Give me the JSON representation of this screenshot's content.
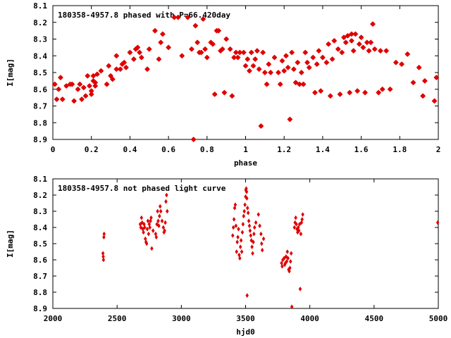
{
  "chart_data": [
    {
      "type": "scatter",
      "title": "180358-4957.8 phased with P=66.420day",
      "xlabel": "phase",
      "ylabel": "I[mag]",
      "xlim": [
        0,
        2
      ],
      "ylim": [
        8.9,
        8.1
      ],
      "y_inverted": true,
      "xticks": [
        "0",
        "0.2",
        "0.4",
        "0.6",
        "0.8",
        "1",
        "1.2",
        "1.4",
        "1.6",
        "1.8",
        "2"
      ],
      "yticks": [
        "8.1",
        "8.2",
        "8.3",
        "8.4",
        "8.5",
        "8.6",
        "8.7",
        "8.8",
        "8.9"
      ],
      "grid": false,
      "marker_color": "#e00000",
      "points": [
        [
          0.01,
          8.57
        ],
        [
          0.02,
          8.66
        ],
        [
          0.03,
          8.6
        ],
        [
          0.04,
          8.53
        ],
        [
          0.05,
          8.66
        ],
        [
          0.07,
          8.58
        ],
        [
          0.09,
          8.57
        ],
        [
          0.1,
          8.57
        ],
        [
          0.11,
          8.67
        ],
        [
          0.13,
          8.6
        ],
        [
          0.14,
          8.57
        ],
        [
          0.15,
          8.66
        ],
        [
          0.16,
          8.59
        ],
        [
          0.17,
          8.64
        ],
        [
          0.18,
          8.52
        ],
        [
          0.19,
          8.58
        ],
        [
          0.2,
          8.63
        ],
        [
          0.2,
          8.61
        ],
        [
          0.21,
          8.52
        ],
        [
          0.21,
          8.55
        ],
        [
          0.22,
          8.56
        ],
        [
          0.22,
          8.58
        ],
        [
          0.23,
          8.51
        ],
        [
          0.25,
          8.49
        ],
        [
          0.28,
          8.57
        ],
        [
          0.29,
          8.46
        ],
        [
          0.3,
          8.52
        ],
        [
          0.31,
          8.54
        ],
        [
          0.33,
          8.4
        ],
        [
          0.33,
          8.48
        ],
        [
          0.35,
          8.48
        ],
        [
          0.36,
          8.45
        ],
        [
          0.37,
          8.44
        ],
        [
          0.38,
          8.47
        ],
        [
          0.4,
          8.38
        ],
        [
          0.42,
          8.42
        ],
        [
          0.43,
          8.36
        ],
        [
          0.44,
          8.35
        ],
        [
          0.45,
          8.38
        ],
        [
          0.46,
          8.41
        ],
        [
          0.49,
          8.48
        ],
        [
          0.5,
          8.36
        ],
        [
          0.53,
          8.25
        ],
        [
          0.55,
          8.42
        ],
        [
          0.56,
          8.32
        ],
        [
          0.57,
          8.27
        ],
        [
          0.6,
          8.35
        ],
        [
          0.63,
          8.17
        ],
        [
          0.65,
          8.17
        ],
        [
          0.67,
          8.4
        ],
        [
          0.7,
          8.17
        ],
        [
          0.72,
          8.36
        ],
        [
          0.73,
          8.9
        ],
        [
          0.74,
          8.22
        ],
        [
          0.75,
          8.32
        ],
        [
          0.76,
          8.38
        ],
        [
          0.77,
          8.38
        ],
        [
          0.78,
          8.18
        ],
        [
          0.79,
          8.36
        ],
        [
          0.8,
          8.41
        ],
        [
          0.82,
          8.32
        ],
        [
          0.83,
          8.33
        ],
        [
          0.84,
          8.63
        ],
        [
          0.85,
          8.25
        ],
        [
          0.86,
          8.25
        ],
        [
          0.87,
          8.37
        ],
        [
          0.88,
          8.36
        ],
        [
          0.89,
          8.62
        ],
        [
          0.9,
          8.3
        ],
        [
          0.92,
          8.36
        ],
        [
          0.93,
          8.64
        ],
        [
          0.94,
          8.41
        ],
        [
          0.95,
          8.38
        ],
        [
          0.96,
          8.41
        ],
        [
          0.97,
          8.38
        ],
        [
          0.99,
          8.38
        ],
        [
          1.0,
          8.46
        ],
        [
          1.01,
          8.42
        ],
        [
          1.02,
          8.49
        ],
        [
          1.03,
          8.38
        ],
        [
          1.04,
          8.46
        ],
        [
          1.05,
          8.42
        ],
        [
          1.06,
          8.37
        ],
        [
          1.07,
          8.48
        ],
        [
          1.08,
          8.82
        ],
        [
          1.09,
          8.38
        ],
        [
          1.1,
          8.5
        ],
        [
          1.11,
          8.57
        ],
        [
          1.12,
          8.45
        ],
        [
          1.13,
          8.5
        ],
        [
          1.15,
          8.41
        ],
        [
          1.17,
          8.5
        ],
        [
          1.18,
          8.57
        ],
        [
          1.19,
          8.43
        ],
        [
          1.2,
          8.49
        ],
        [
          1.21,
          8.4
        ],
        [
          1.22,
          8.47
        ],
        [
          1.23,
          8.78
        ],
        [
          1.24,
          8.38
        ],
        [
          1.25,
          8.48
        ],
        [
          1.26,
          8.56
        ],
        [
          1.27,
          8.44
        ],
        [
          1.28,
          8.57
        ],
        [
          1.29,
          8.5
        ],
        [
          1.3,
          8.57
        ],
        [
          1.31,
          8.38
        ],
        [
          1.32,
          8.44
        ],
        [
          1.33,
          8.47
        ],
        [
          1.35,
          8.41
        ],
        [
          1.36,
          8.62
        ],
        [
          1.37,
          8.45
        ],
        [
          1.38,
          8.37
        ],
        [
          1.39,
          8.61
        ],
        [
          1.4,
          8.41
        ],
        [
          1.42,
          8.44
        ],
        [
          1.43,
          8.33
        ],
        [
          1.44,
          8.64
        ],
        [
          1.45,
          8.42
        ],
        [
          1.46,
          8.31
        ],
        [
          1.48,
          8.36
        ],
        [
          1.49,
          8.63
        ],
        [
          1.5,
          8.38
        ],
        [
          1.51,
          8.29
        ],
        [
          1.52,
          8.32
        ],
        [
          1.53,
          8.28
        ],
        [
          1.54,
          8.62
        ],
        [
          1.55,
          8.31
        ],
        [
          1.55,
          8.27
        ],
        [
          1.56,
          8.37
        ],
        [
          1.57,
          8.27
        ],
        [
          1.58,
          8.61
        ],
        [
          1.59,
          8.33
        ],
        [
          1.6,
          8.29
        ],
        [
          1.61,
          8.35
        ],
        [
          1.62,
          8.62
        ],
        [
          1.63,
          8.32
        ],
        [
          1.64,
          8.37
        ],
        [
          1.65,
          8.32
        ],
        [
          1.66,
          8.21
        ],
        [
          1.67,
          8.36
        ],
        [
          1.69,
          8.62
        ],
        [
          1.7,
          8.37
        ],
        [
          1.71,
          8.6
        ],
        [
          1.73,
          8.37
        ],
        [
          1.75,
          8.6
        ],
        [
          1.78,
          8.44
        ],
        [
          1.81,
          8.45
        ],
        [
          1.84,
          8.39
        ],
        [
          1.87,
          8.56
        ],
        [
          1.9,
          8.47
        ],
        [
          1.92,
          8.64
        ],
        [
          1.93,
          8.55
        ],
        [
          1.98,
          8.67
        ],
        [
          1.99,
          8.53
        ]
      ]
    },
    {
      "type": "scatter",
      "title": "180358-4957.8 not phased light curve",
      "xlabel": "hjd0",
      "ylabel": "I[mag]",
      "xlim": [
        2000,
        5000
      ],
      "ylim": [
        8.9,
        8.1
      ],
      "y_inverted": true,
      "xticks": [
        "2000",
        "2500",
        "3000",
        "3500",
        "4000",
        "4500",
        "5000"
      ],
      "yticks": [
        "8.1",
        "8.2",
        "8.3",
        "8.4",
        "8.5",
        "8.6",
        "8.7",
        "8.8",
        "8.9"
      ],
      "grid": false,
      "marker_color": "#e00000",
      "points": [
        [
          2390,
          8.56
        ],
        [
          2392,
          8.58
        ],
        [
          2394,
          8.6
        ],
        [
          2397,
          8.46
        ],
        [
          2399,
          8.44
        ],
        [
          2680,
          8.38
        ],
        [
          2685,
          8.4
        ],
        [
          2690,
          8.34
        ],
        [
          2695,
          8.37
        ],
        [
          2700,
          8.41
        ],
        [
          2705,
          8.43
        ],
        [
          2710,
          8.38
        ],
        [
          2715,
          8.4
        ],
        [
          2720,
          8.47
        ],
        [
          2725,
          8.49
        ],
        [
          2730,
          8.5
        ],
        [
          2735,
          8.41
        ],
        [
          2740,
          8.36
        ],
        [
          2745,
          8.44
        ],
        [
          2750,
          8.38
        ],
        [
          2755,
          8.4
        ],
        [
          2760,
          8.36
        ],
        [
          2765,
          8.34
        ],
        [
          2770,
          8.53
        ],
        [
          2780,
          8.42
        ],
        [
          2800,
          8.44
        ],
        [
          2805,
          8.46
        ],
        [
          2810,
          8.38
        ],
        [
          2815,
          8.3
        ],
        [
          2820,
          8.36
        ],
        [
          2825,
          8.39
        ],
        [
          2830,
          8.33
        ],
        [
          2835,
          8.27
        ],
        [
          2840,
          8.3
        ],
        [
          2850,
          8.36
        ],
        [
          2860,
          8.4
        ],
        [
          2865,
          8.43
        ],
        [
          2870,
          8.42
        ],
        [
          2875,
          8.37
        ],
        [
          2880,
          8.24
        ],
        [
          2885,
          8.2
        ],
        [
          2890,
          8.3
        ],
        [
          3400,
          8.45
        ],
        [
          3405,
          8.4
        ],
        [
          3410,
          8.35
        ],
        [
          3415,
          8.28
        ],
        [
          3420,
          8.26
        ],
        [
          3425,
          8.39
        ],
        [
          3430,
          8.55
        ],
        [
          3435,
          8.49
        ],
        [
          3440,
          8.46
        ],
        [
          3445,
          8.41
        ],
        [
          3450,
          8.57
        ],
        [
          3455,
          8.59
        ],
        [
          3460,
          8.52
        ],
        [
          3465,
          8.48
        ],
        [
          3470,
          8.55
        ],
        [
          3475,
          8.43
        ],
        [
          3480,
          8.38
        ],
        [
          3485,
          8.33
        ],
        [
          3490,
          8.3
        ],
        [
          3495,
          8.26
        ],
        [
          3500,
          8.21
        ],
        [
          3502,
          8.17
        ],
        [
          3505,
          8.16
        ],
        [
          3508,
          8.18
        ],
        [
          3510,
          8.22
        ],
        [
          3512,
          8.82
        ],
        [
          3515,
          8.28
        ],
        [
          3520,
          8.31
        ],
        [
          3525,
          8.36
        ],
        [
          3530,
          8.39
        ],
        [
          3535,
          8.42
        ],
        [
          3540,
          8.45
        ],
        [
          3545,
          8.48
        ],
        [
          3550,
          8.52
        ],
        [
          3555,
          8.56
        ],
        [
          3560,
          8.49
        ],
        [
          3565,
          8.44
        ],
        [
          3570,
          8.4
        ],
        [
          3580,
          8.37
        ],
        [
          3600,
          8.32
        ],
        [
          3610,
          8.39
        ],
        [
          3620,
          8.44
        ],
        [
          3625,
          8.5
        ],
        [
          3630,
          8.54
        ],
        [
          3640,
          8.47
        ],
        [
          3780,
          8.62
        ],
        [
          3785,
          8.64
        ],
        [
          3790,
          8.6
        ],
        [
          3800,
          8.59
        ],
        [
          3805,
          8.63
        ],
        [
          3810,
          8.62
        ],
        [
          3815,
          8.58
        ],
        [
          3820,
          8.61
        ],
        [
          3825,
          8.55
        ],
        [
          3830,
          8.59
        ],
        [
          3835,
          8.66
        ],
        [
          3840,
          8.67
        ],
        [
          3845,
          8.65
        ],
        [
          3850,
          8.61
        ],
        [
          3855,
          8.56
        ],
        [
          3860,
          8.89
        ],
        [
          3880,
          8.4
        ],
        [
          3885,
          8.37
        ],
        [
          3890,
          8.34
        ],
        [
          3895,
          8.38
        ],
        [
          3900,
          8.41
        ],
        [
          3905,
          8.43
        ],
        [
          3910,
          8.4
        ],
        [
          3915,
          8.42
        ],
        [
          3920,
          8.38
        ],
        [
          3925,
          8.78
        ],
        [
          3930,
          8.44
        ],
        [
          3935,
          8.37
        ],
        [
          3940,
          8.35
        ],
        [
          3945,
          8.32
        ],
        [
          4995,
          8.37
        ]
      ]
    }
  ]
}
